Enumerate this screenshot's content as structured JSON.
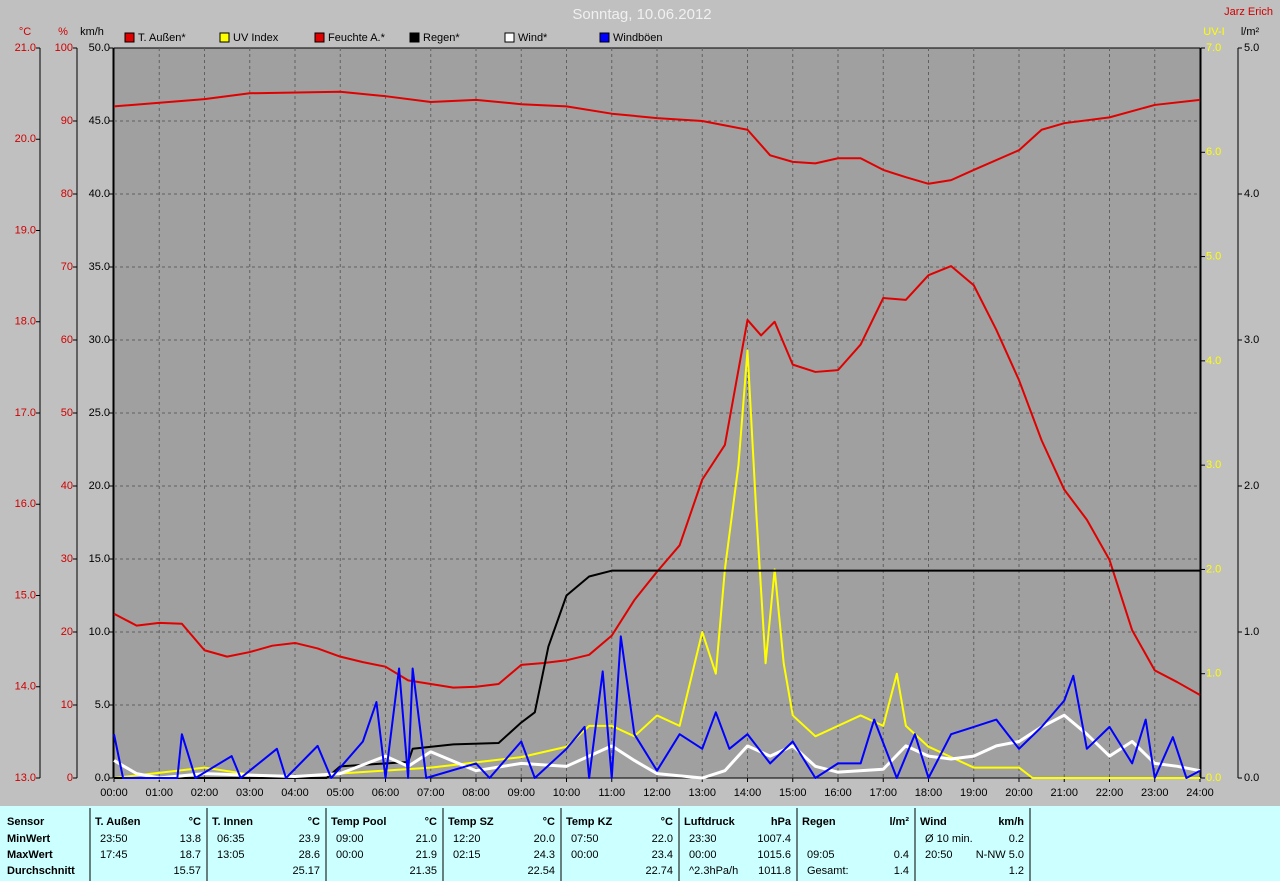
{
  "chart_data": {
    "type": "line",
    "title": "Sonntag, 10.06.2012",
    "author": "Jarz Erich",
    "xlim": [
      0,
      24
    ],
    "xticks": [
      {
        "value": 0,
        "label": "00:00"
      },
      {
        "value": 1,
        "label": "01:00"
      },
      {
        "value": 2,
        "label": "02:00"
      },
      {
        "value": 3,
        "label": "03:00"
      },
      {
        "value": 4,
        "label": "04:00"
      },
      {
        "value": 5,
        "label": "05:00"
      },
      {
        "value": 6,
        "label": "06:00"
      },
      {
        "value": 7,
        "label": "07:00"
      },
      {
        "value": 8,
        "label": "08:00"
      },
      {
        "value": 9,
        "label": "09:00"
      },
      {
        "value": 10,
        "label": "10:00"
      },
      {
        "value": 11,
        "label": "11:00"
      },
      {
        "value": 12,
        "label": "12:00"
      },
      {
        "value": 13,
        "label": "13:00"
      },
      {
        "value": 14,
        "label": "14:00"
      },
      {
        "value": 15,
        "label": "15:00"
      },
      {
        "value": 16,
        "label": "16:00"
      },
      {
        "value": 17,
        "label": "17:00"
      },
      {
        "value": 18,
        "label": "18:00"
      },
      {
        "value": 19,
        "label": "19:00"
      },
      {
        "value": 20,
        "label": "20:00"
      },
      {
        "value": 21,
        "label": "21:00"
      },
      {
        "value": 22,
        "label": "22:00"
      },
      {
        "value": 23,
        "label": "23:00"
      },
      {
        "value": 24,
        "label": "24:00"
      }
    ],
    "ylabel": "°C",
    "ylim": [
      13,
      21
    ],
    "yticks": [
      {
        "value": 13,
        "label": "13.0"
      },
      {
        "value": 14,
        "label": "14.0"
      },
      {
        "value": 15,
        "label": "15.0"
      },
      {
        "value": 16,
        "label": "16.0"
      },
      {
        "value": 17,
        "label": "17.0"
      },
      {
        "value": 18,
        "label": "18.0"
      },
      {
        "value": 19,
        "label": "19.0"
      },
      {
        "value": 20,
        "label": "20.0"
      },
      {
        "value": 21,
        "label": "21.0"
      }
    ],
    "y2label": "%",
    "y2lim": [
      0,
      100
    ],
    "y2ticks": [
      0,
      10,
      20,
      30,
      40,
      50,
      60,
      70,
      80,
      90,
      100
    ],
    "y3label": "km/h",
    "y3lim": [
      0,
      50
    ],
    "y3ticks": [
      {
        "value": 0,
        "label": "0.0"
      },
      {
        "value": 5,
        "label": "5.0"
      },
      {
        "value": 10,
        "label": "10.0"
      },
      {
        "value": 15,
        "label": "15.0"
      },
      {
        "value": 20,
        "label": "20.0"
      },
      {
        "value": 25,
        "label": "25.0"
      },
      {
        "value": 30,
        "label": "30.0"
      },
      {
        "value": 35,
        "label": "35.0"
      },
      {
        "value": 40,
        "label": "40.0"
      },
      {
        "value": 45,
        "label": "45.0"
      },
      {
        "value": 50,
        "label": "50.0"
      }
    ],
    "y4label": "UV-I",
    "y4lim": [
      0,
      7
    ],
    "y4ticks": [
      {
        "value": 0,
        "label": "0.0"
      },
      {
        "value": 1,
        "label": "1.0"
      },
      {
        "value": 2,
        "label": "2.0"
      },
      {
        "value": 3,
        "label": "3.0"
      },
      {
        "value": 4,
        "label": "4.0"
      },
      {
        "value": 5,
        "label": "5.0"
      },
      {
        "value": 6,
        "label": "6.0"
      },
      {
        "value": 7,
        "label": "7.0"
      }
    ],
    "y5label": "l/m²",
    "y5lim": [
      0,
      5
    ],
    "y5ticks": [
      {
        "value": 0,
        "label": "0.0"
      },
      {
        "value": 1,
        "label": "1.0"
      },
      {
        "value": 2,
        "label": "2.0"
      },
      {
        "value": 3,
        "label": "3.0"
      },
      {
        "value": 4,
        "label": "4.0"
      },
      {
        "value": 5,
        "label": "5.0"
      }
    ],
    "grid": true,
    "series": [
      {
        "name": "T. Außen*",
        "color": "#e00000",
        "axis": "y",
        "x": [
          0,
          0.5,
          1,
          1.5,
          2,
          2.5,
          3,
          3.5,
          4,
          4.5,
          5,
          5.5,
          6,
          6.5,
          7,
          7.5,
          8,
          8.5,
          9,
          9.5,
          10,
          10.5,
          11,
          11.5,
          12,
          12.5,
          13,
          13.5,
          14,
          14.3,
          14.6,
          15,
          15.5,
          16,
          16.5,
          17,
          17.5,
          18,
          18.5,
          19,
          19.5,
          20,
          20.5,
          21,
          21.5,
          22,
          22.5,
          23,
          23.5,
          24
        ],
        "values": [
          14.8,
          14.67,
          14.7,
          14.69,
          14.4,
          14.33,
          14.38,
          14.45,
          14.48,
          14.42,
          14.33,
          14.27,
          14.22,
          14.07,
          14.03,
          13.99,
          14.0,
          14.03,
          14.24,
          14.26,
          14.29,
          14.35,
          14.56,
          14.95,
          15.26,
          15.55,
          16.27,
          16.65,
          18.02,
          17.85,
          18.0,
          17.53,
          17.45,
          17.47,
          17.75,
          18.26,
          18.24,
          18.51,
          18.61,
          18.4,
          17.91,
          17.36,
          16.7,
          16.16,
          15.83,
          15.39,
          14.62,
          14.18,
          14.05,
          13.91
        ]
      },
      {
        "name": "UV Index",
        "color": "#ffff00",
        "axis": "y4",
        "x": [
          0,
          2,
          3.5,
          7,
          9,
          10,
          10.5,
          11,
          11.5,
          12,
          12.5,
          13,
          13.3,
          13.5,
          13.8,
          14,
          14.2,
          14.4,
          14.6,
          14.8,
          15,
          15.5,
          16,
          16.5,
          17,
          17.3,
          17.5,
          18,
          18.5,
          19,
          20,
          20.3,
          24
        ],
        "values": [
          0,
          0.1,
          0,
          0.1,
          0.2,
          0.3,
          0.5,
          0.5,
          0.4,
          0.6,
          0.5,
          1.4,
          1.0,
          2.0,
          3.0,
          4.1,
          2.5,
          1.1,
          2.0,
          1.1,
          0.6,
          0.4,
          0.5,
          0.6,
          0.5,
          1.0,
          0.5,
          0.3,
          0.2,
          0.1,
          0.1,
          0,
          0
        ]
      },
      {
        "name": "Feuchte A.*",
        "color": "#e00000",
        "axis": "y2",
        "x": [
          0,
          2,
          3,
          5,
          6,
          7,
          8,
          9,
          10,
          11,
          12,
          13,
          14,
          14.5,
          15,
          15.5,
          16,
          16.5,
          17,
          17.5,
          18,
          18.5,
          19,
          20,
          20.5,
          21,
          22,
          23,
          24
        ],
        "values": [
          92,
          93,
          93.8,
          94,
          93.4,
          92.6,
          92.9,
          92.3,
          92,
          91,
          90.4,
          90,
          88.8,
          85.3,
          84.4,
          84.2,
          84.9,
          84.9,
          83.3,
          82.3,
          81.4,
          81.9,
          83.3,
          86,
          88.8,
          89.7,
          90.5,
          92.2,
          92.9
        ]
      },
      {
        "name": "Regen*",
        "color": "#000000",
        "axis": "y5",
        "x": [
          0,
          4.7,
          5,
          6.5,
          6.6,
          7.5,
          8.5,
          9,
          9.3,
          9.6,
          10,
          10.5,
          11,
          24
        ],
        "values": [
          0,
          0,
          0.08,
          0.11,
          0.2,
          0.23,
          0.24,
          0.38,
          0.45,
          0.9,
          1.25,
          1.38,
          1.42,
          1.42
        ]
      },
      {
        "name": "Wind*",
        "color": "#ffffff",
        "axis": "y3",
        "x": [
          0,
          0.5,
          1,
          2,
          3,
          4,
          5,
          6,
          6.5,
          7,
          8,
          9,
          10,
          11,
          11.5,
          12,
          13,
          13.5,
          14,
          14.5,
          15,
          15.5,
          16,
          17,
          17.5,
          18,
          18.5,
          19,
          19.5,
          20,
          20.5,
          21,
          21.5,
          22,
          22.5,
          23,
          23.5,
          24
        ],
        "values": [
          1.2,
          0.3,
          0,
          0.3,
          0.2,
          0.1,
          0.3,
          1.5,
          0.8,
          1.8,
          0.5,
          1.0,
          0.8,
          2.2,
          1.2,
          0.3,
          0,
          0.5,
          2.2,
          1.5,
          2.2,
          0.8,
          0.4,
          0.6,
          2.2,
          1.5,
          1.3,
          1.5,
          2.2,
          2.5,
          3.5,
          4.3,
          3.0,
          1.5,
          2.5,
          1.0,
          0.8,
          0.5
        ]
      },
      {
        "name": "Windböen",
        "color": "#0000ff",
        "axis": "y3",
        "x": [
          0,
          0.2,
          1.4,
          1.5,
          1.8,
          2.6,
          2.8,
          3.6,
          3.8,
          4.5,
          4.8,
          5.5,
          5.8,
          6.0,
          6.3,
          6.5,
          6.6,
          6.9,
          8,
          8.3,
          9,
          9.3,
          10,
          10.4,
          10.5,
          10.8,
          11.0,
          11.2,
          11.5,
          12,
          12.5,
          13,
          13.3,
          13.6,
          14,
          14.5,
          15,
          15.5,
          16,
          16.5,
          16.8,
          17.3,
          17.7,
          18,
          18.5,
          19,
          19.5,
          20,
          20.5,
          21,
          21.2,
          21.5,
          22,
          22.5,
          22.8,
          23,
          23.4,
          23.7,
          24
        ],
        "values": [
          3,
          0,
          0,
          3.0,
          0,
          1.5,
          0,
          2.0,
          0,
          2.2,
          0,
          2.5,
          5.2,
          0,
          7.5,
          0,
          7.5,
          0,
          1,
          0,
          2.5,
          0,
          2.0,
          3.5,
          0,
          7.3,
          0,
          9.7,
          3.0,
          0.5,
          3.0,
          2.0,
          4.5,
          2,
          3.0,
          1.0,
          2.5,
          0,
          1,
          1,
          4,
          0,
          3.0,
          0,
          3.0,
          3.5,
          4.0,
          2.0,
          3.5,
          5.3,
          7.0,
          2.0,
          3.5,
          1.0,
          4.0,
          0,
          2.8,
          0,
          0.5
        ]
      }
    ]
  },
  "table": {
    "sensor_column": [
      "Sensor",
      "MinWert",
      "MaxWert",
      "Durchschnitt"
    ],
    "groups": [
      {
        "name": "T. Außen",
        "unit": "°C",
        "rows": [
          [
            "23:50",
            "13.8"
          ],
          [
            "17:45",
            "18.7"
          ],
          [
            null,
            "15.57"
          ]
        ]
      },
      {
        "name": "T. Innen",
        "unit": "°C",
        "rows": [
          [
            "06:35",
            "23.9"
          ],
          [
            "13:05",
            "28.6"
          ],
          [
            null,
            "25.17"
          ]
        ]
      },
      {
        "name": "Temp Pool",
        "unit": "°C",
        "rows": [
          [
            "09:00",
            "21.0"
          ],
          [
            "00:00",
            "21.9"
          ],
          [
            null,
            "21.35"
          ]
        ]
      },
      {
        "name": "Temp SZ",
        "unit": "°C",
        "rows": [
          [
            "12:20",
            "20.0"
          ],
          [
            "02:15",
            "24.3"
          ],
          [
            null,
            "22.54"
          ]
        ]
      },
      {
        "name": "Temp KZ",
        "unit": "°C",
        "rows": [
          [
            "07:50",
            "22.0"
          ],
          [
            "00:00",
            "23.4"
          ],
          [
            null,
            "22.74"
          ]
        ]
      },
      {
        "name": "Luftdruck",
        "unit": "hPa",
        "rows": [
          [
            "23:30",
            "1007.4"
          ],
          [
            "00:00",
            "1015.6"
          ],
          [
            "^2.3hPa/h",
            "1011.8"
          ]
        ]
      },
      {
        "name": "Regen",
        "unit": "l/m²",
        "rows": [
          [
            null,
            null
          ],
          [
            "09:05",
            "0.4"
          ],
          [
            "Gesamt:",
            "1.4"
          ]
        ]
      },
      {
        "name": "Wind",
        "unit": "km/h",
        "rows": [
          [
            "Ø 10 min.",
            "0.2"
          ],
          [
            "20:50",
            "N-NW 5.0"
          ],
          [
            null,
            "1.2"
          ]
        ]
      }
    ]
  }
}
